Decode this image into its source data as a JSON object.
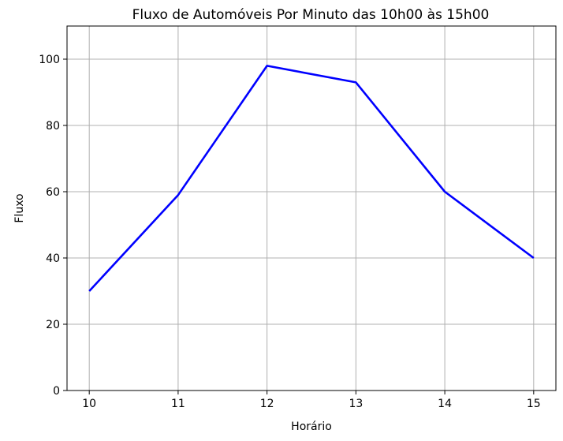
{
  "chart_data": {
    "type": "line",
    "title": "Fluxo de Automóveis Por Minuto das 10h00 às 15h00",
    "xlabel": "Horário",
    "ylabel": "Fluxo",
    "x": [
      10,
      11,
      12,
      13,
      14,
      15
    ],
    "series": [
      {
        "values": [
          30,
          59,
          98,
          93,
          60,
          40
        ],
        "color": "#0000ff"
      }
    ],
    "xlim": [
      9.75,
      15.25
    ],
    "ylim": [
      0,
      110
    ],
    "xticks": [
      10,
      11,
      12,
      13,
      14,
      15
    ],
    "yticks": [
      0,
      20,
      40,
      60,
      80,
      100
    ],
    "grid": true,
    "legend": "none"
  }
}
